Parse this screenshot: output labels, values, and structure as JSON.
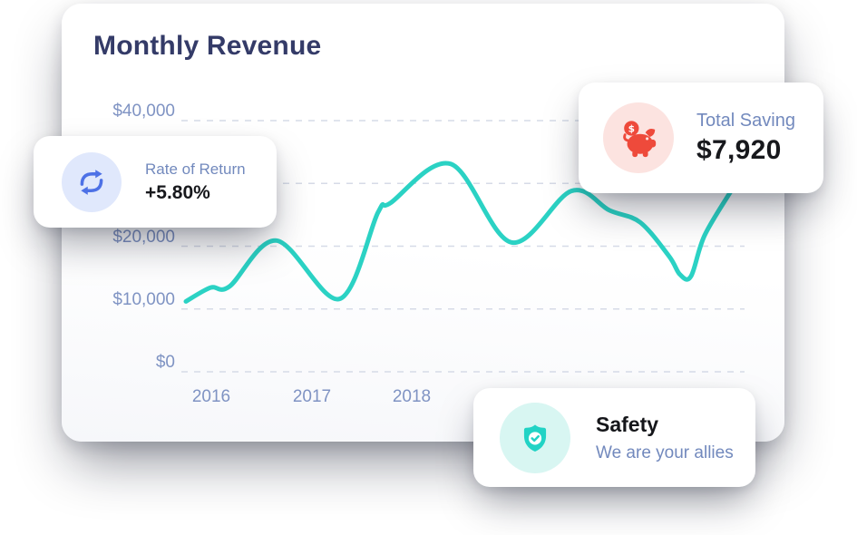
{
  "panel": {
    "title": "Monthly Revenue"
  },
  "chart_data": {
    "type": "line",
    "title": "Monthly Revenue",
    "x_tick_labels": [
      "2016",
      "2017",
      "2018"
    ],
    "y_tick_labels": [
      "$40,000",
      "$30,000",
      "$20,000",
      "$10,000",
      "$0"
    ],
    "y_tick_values": [
      40000,
      30000,
      20000,
      10000,
      0
    ],
    "ylim": [
      0,
      40000
    ],
    "grid": "horizontal-dashed",
    "legend": "none",
    "line_color": "#2bd2c4",
    "gridline_color": "#d6dbe7",
    "series": [
      {
        "name": "Monthly Revenue",
        "points": [
          {
            "x": 0.0,
            "value": 11200
          },
          {
            "x": 0.045,
            "value": 13400
          },
          {
            "x": 0.08,
            "value": 13600
          },
          {
            "x": 0.166,
            "value": 20900
          },
          {
            "x": 0.281,
            "value": 11600
          },
          {
            "x": 0.352,
            "value": 25400
          },
          {
            "x": 0.375,
            "value": 26900
          },
          {
            "x": 0.485,
            "value": 33100
          },
          {
            "x": 0.596,
            "value": 20600
          },
          {
            "x": 0.706,
            "value": 28800
          },
          {
            "x": 0.776,
            "value": 25700
          },
          {
            "x": 0.832,
            "value": 23800
          },
          {
            "x": 0.885,
            "value": 18400
          },
          {
            "x": 0.905,
            "value": 15500
          },
          {
            "x": 0.925,
            "value": 15200
          },
          {
            "x": 0.95,
            "value": 21700
          },
          {
            "x": 1.0,
            "value": 29000
          }
        ]
      }
    ]
  },
  "cards": {
    "rate_of_return": {
      "label": "Rate of Return",
      "value": "+5.80%",
      "icon": "refresh-icon",
      "icon_color": "#4d71e6",
      "icon_bg": "#e0e8fc"
    },
    "total_saving": {
      "label": "Total Saving",
      "value": "$7,920",
      "icon": "piggy-bank-icon",
      "icon_color": "#ee4a3b",
      "icon_bg": "#fce3e0"
    },
    "safety": {
      "title": "Safety",
      "subtitle": "We are your allies",
      "icon": "shield-check-icon",
      "icon_color": "#22d3c5",
      "icon_bg": "#d8f6f2"
    }
  },
  "colors": {
    "title_text": "#343b68",
    "axis_label": "#7f93c3",
    "card_label": "#7289bd",
    "value_text": "#17181c"
  }
}
